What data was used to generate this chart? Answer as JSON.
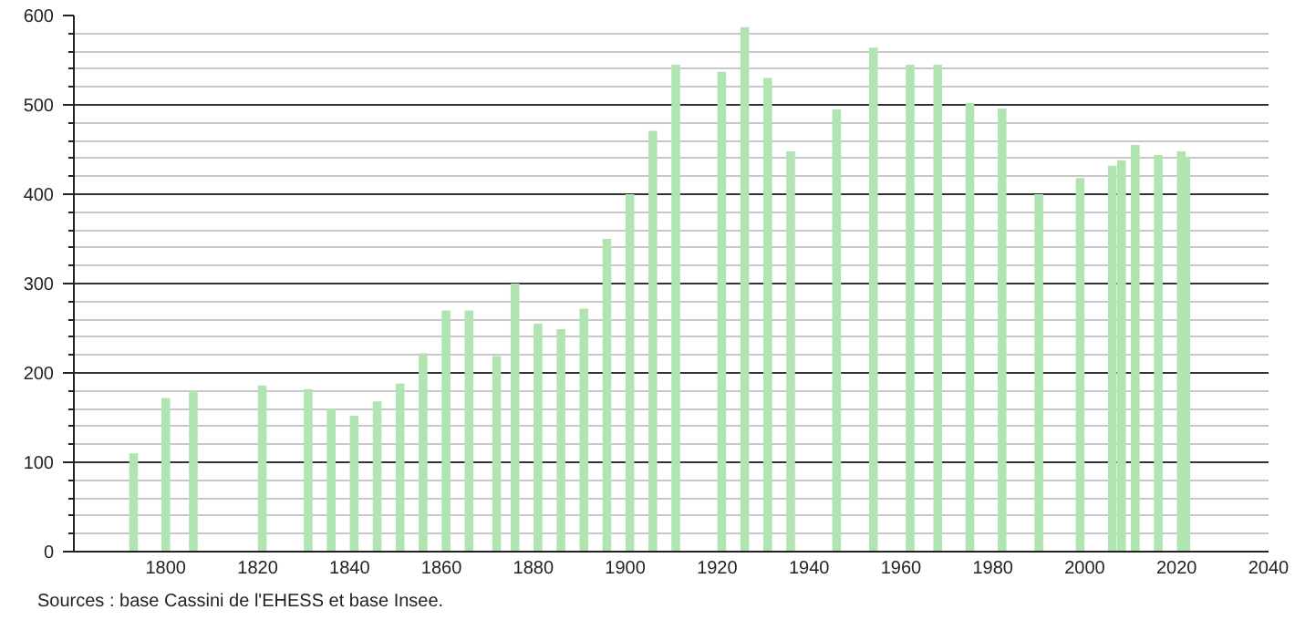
{
  "chart_data": {
    "type": "bar",
    "x": [
      1793,
      1800,
      1806,
      1821,
      1831,
      1836,
      1841,
      1846,
      1851,
      1856,
      1861,
      1866,
      1872,
      1876,
      1881,
      1886,
      1891,
      1896,
      1901,
      1906,
      1911,
      1921,
      1926,
      1931,
      1936,
      1946,
      1954,
      1962,
      1968,
      1975,
      1982,
      1990,
      1999,
      2006,
      2008,
      2011,
      2016,
      2021,
      2022
    ],
    "values": [
      110,
      172,
      180,
      186,
      182,
      160,
      152,
      168,
      188,
      222,
      270,
      270,
      219,
      300,
      255,
      249,
      272,
      350,
      400,
      471,
      545,
      537,
      587,
      530,
      448,
      495,
      564,
      545,
      545,
      502,
      496,
      400,
      418,
      432,
      438,
      455,
      444,
      448,
      442
    ],
    "color": "#b0e4b0",
    "xlim": [
      1780,
      2040
    ],
    "xticks": [
      1800,
      1820,
      1840,
      1860,
      1880,
      1900,
      1920,
      1940,
      1960,
      1980,
      2000,
      2020,
      2040
    ],
    "ylim": [
      0,
      600
    ],
    "yticks": [
      0,
      100,
      200,
      300,
      400,
      500,
      600
    ],
    "grid": "y",
    "annotations": [
      "Sources : base Cassini de l'EHESS et base Insee."
    ]
  }
}
